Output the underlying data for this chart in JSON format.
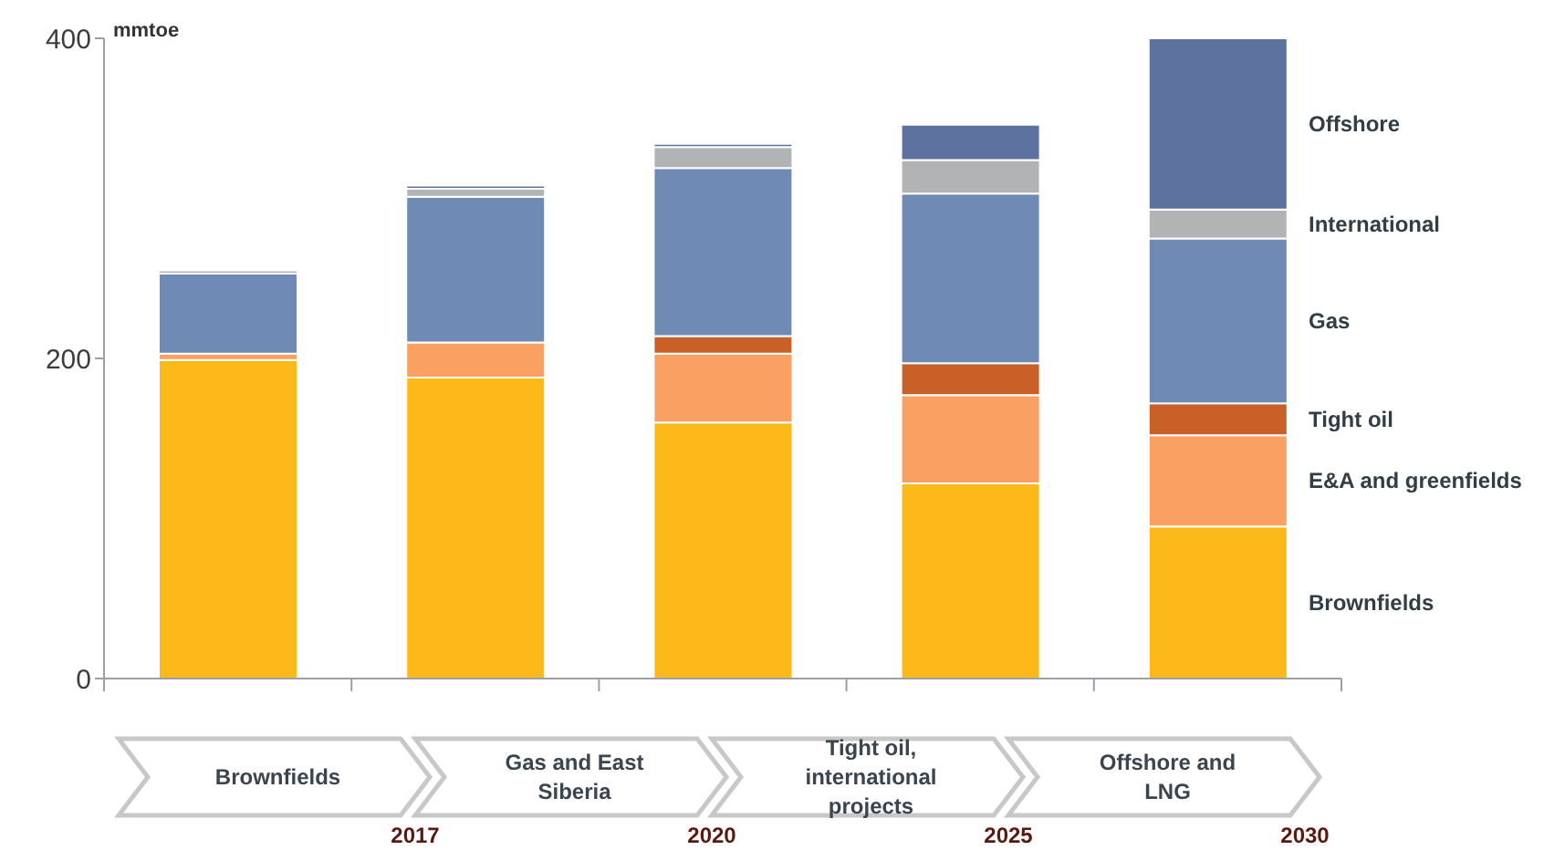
{
  "chart_data": {
    "type": "bar",
    "stacked": true,
    "ylabel": "mmtoe",
    "categories": [
      null,
      null,
      null,
      null,
      null
    ],
    "series": [
      {
        "name": "Brownfields",
        "color": "#fdb91a",
        "values": [
          199,
          188,
          160,
          122,
          95
        ]
      },
      {
        "name": "E&A and greenfields",
        "color": "#f9a062",
        "values": [
          4,
          22,
          43,
          55,
          57
        ]
      },
      {
        "name": "Tight oil",
        "color": "#c86028",
        "values": [
          0,
          0,
          11,
          20,
          20
        ]
      },
      {
        "name": "Gas",
        "color": "#6f8bb5",
        "values": [
          50,
          91,
          105,
          106,
          103
        ]
      },
      {
        "name": "International",
        "color": "#b2b3b5",
        "values": [
          2,
          5,
          13,
          21,
          18
        ]
      },
      {
        "name": "Offshore",
        "color": "#5e72a0",
        "values": [
          0,
          2,
          2,
          22,
          107
        ]
      }
    ],
    "ylim": [
      0,
      400
    ],
    "yticks": [
      0,
      200,
      400
    ],
    "grid": false,
    "legend": "right",
    "annotations": [
      "Brownfields",
      "Gas and East Siberia",
      "Tight oil, international projects",
      "Offshore and LNG",
      "2017",
      "2020",
      "2025",
      "2030"
    ]
  }
}
